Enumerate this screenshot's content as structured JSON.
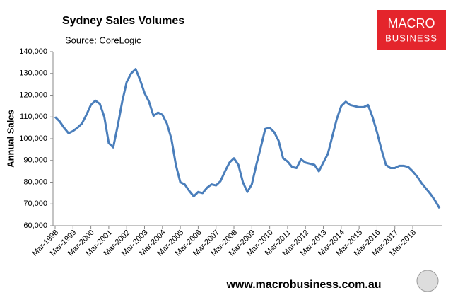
{
  "chart_data": {
    "type": "line",
    "title": "Sydney Sales Volumes",
    "subtitle": "Source: CoreLogic",
    "y_label": "Annual Sales",
    "logo": [
      "MACRO",
      "BUSINESS"
    ],
    "footer": "www.macrobusiness.com.au",
    "categories": [
      "Mar-1998",
      null,
      null,
      null,
      "Mar-1999",
      null,
      null,
      null,
      "Mar-2000",
      null,
      null,
      null,
      "Mar-2001",
      null,
      null,
      null,
      "Mar-2002",
      null,
      null,
      null,
      "Mar-2003",
      null,
      null,
      null,
      "Mar-2004",
      null,
      null,
      null,
      "Mar-2005",
      null,
      null,
      null,
      "Mar-2006",
      null,
      null,
      null,
      "Mar-2007",
      null,
      null,
      null,
      "Mar-2008",
      null,
      null,
      null,
      "Mar-2009",
      null,
      null,
      null,
      "Mar-2010",
      null,
      null,
      null,
      "Mar-2011",
      null,
      null,
      null,
      "Mar-2012",
      null,
      null,
      null,
      "Mar-2013",
      null,
      null,
      null,
      "Mar-2014",
      null,
      null,
      null,
      "Mar-2015",
      null,
      null,
      null,
      "Mar-2016",
      null,
      null,
      null,
      "Mar-2017",
      null,
      null,
      null,
      "Mar-2018",
      null,
      null,
      null,
      null,
      null,
      null
    ],
    "series": [
      {
        "name": "Sydney",
        "color": "#4a7ebb",
        "values": [
          110000,
          108000,
          105000,
          102500,
          103500,
          105000,
          107000,
          111000,
          115500,
          117500,
          116000,
          110000,
          98000,
          96000,
          106000,
          117000,
          126000,
          130000,
          132000,
          127000,
          121000,
          117000,
          110500,
          112000,
          111000,
          107000,
          100000,
          88000,
          80000,
          79000,
          76000,
          73500,
          75500,
          75000,
          77500,
          79000,
          78500,
          80500,
          85000,
          89000,
          91000,
          88000,
          80000,
          75500,
          79000,
          88000,
          96000,
          104500,
          105000,
          103000,
          99000,
          91000,
          89500,
          87000,
          86500,
          90500,
          89000,
          88500,
          88000,
          85000,
          89000,
          93000,
          101000,
          109000,
          115000,
          117000,
          115500,
          115000,
          114500,
          114500,
          115500,
          110000,
          103000,
          95000,
          88000,
          86500,
          86500,
          87500,
          87500,
          87000,
          85000,
          82500,
          79500,
          77000,
          74500,
          71500,
          68000
        ]
      }
    ],
    "ylim": [
      60000,
      140000
    ],
    "yticks": [
      {
        "value": 60000,
        "label": "60,000"
      },
      {
        "value": 70000,
        "label": "70,000"
      },
      {
        "value": 80000,
        "label": "80,000"
      },
      {
        "value": 90000,
        "label": "90,000"
      },
      {
        "value": 100000,
        "label": "100,000"
      },
      {
        "value": 110000,
        "label": "110,000"
      },
      {
        "value": 120000,
        "label": "120,000"
      },
      {
        "value": 130000,
        "label": "130,000"
      },
      {
        "value": 140000,
        "label": "140,000"
      }
    ],
    "grid": false
  }
}
